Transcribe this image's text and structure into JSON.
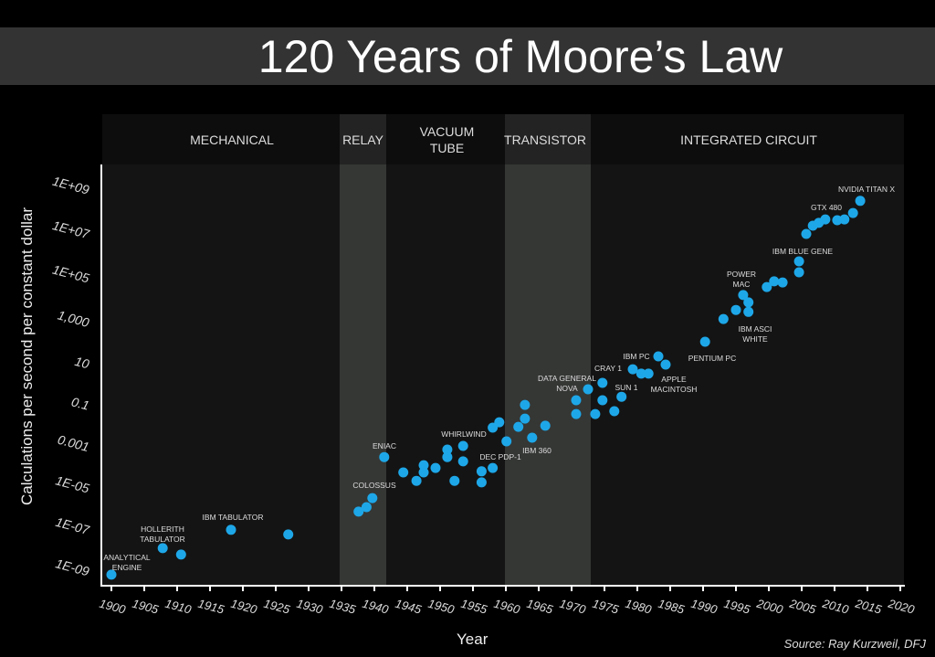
{
  "title": "120 Years of Moore’s Law",
  "source": "Source: Ray Kurzweil, DFJ",
  "chart_data": {
    "type": "scatter",
    "title": "120 Years of Moore’s Law",
    "xlabel": "Year",
    "ylabel": "Calculations per second per constant dollar",
    "xlim": [
      1898,
      2020
    ],
    "ylim": [
      1e-09,
      1000000000.0
    ],
    "y_scale": "log",
    "grid": false,
    "x_ticks": [
      "1900",
      "1905",
      "1910",
      "1915",
      "1920",
      "1925",
      "1930",
      "1935",
      "1940",
      "1945",
      "1950",
      "1955",
      "1960",
      "1965",
      "1970",
      "1975",
      "1980",
      "1985",
      "1990",
      "1995",
      "2000",
      "2005",
      "2010",
      "2015",
      "2020"
    ],
    "y_ticks": [
      "1E-09",
      "1E-07",
      "1E-05",
      "0.001",
      "0.1",
      "10",
      "1,000",
      "1E+05",
      "1E+07",
      "1E+09"
    ],
    "eras": [
      {
        "label": "MECHANICAL",
        "from": 1898,
        "to": 1935
      },
      {
        "label": "RELAY",
        "from": 1935,
        "to": 1942
      },
      {
        "label": "VACUUM TUBE",
        "from": 1942,
        "to": 1960
      },
      {
        "label": "TRANSISTOR",
        "from": 1960,
        "to": 1973
      },
      {
        "label": "INTEGRATED CIRCUIT",
        "from": 1973,
        "to": 2020
      }
    ],
    "point_color": "#1ea7e8",
    "points": [
      [
        1900,
        4.5e-10
      ],
      [
        1907.8,
        8.5e-09
      ],
      [
        1910.6,
        4.2e-09
      ],
      [
        1918.2,
        6.5e-08
      ],
      [
        1926.9,
        3.9e-08
      ],
      [
        1937.6,
        4.9e-07
      ],
      [
        1938.8,
        8.1e-07
      ],
      [
        1939.7,
        2.2e-06
      ],
      [
        1941.5,
        0.00021
      ],
      [
        1944.4,
        3.8e-05
      ],
      [
        1946.4,
        1.5e-05
      ],
      [
        1947.5,
        3.8e-05
      ],
      [
        1947.5,
        8.5e-05
      ],
      [
        1949.3,
        6.3e-05
      ],
      [
        1951.1,
        0.00021
      ],
      [
        1951.1,
        0.00048
      ],
      [
        1952.2,
        1.5e-05
      ],
      [
        1953.5,
        0.00013
      ],
      [
        1953.5,
        0.00072
      ],
      [
        1956.3,
        4.3e-05
      ],
      [
        1956.3,
        1.26e-05
      ],
      [
        1958,
        6.3e-05
      ],
      [
        1958,
        0.0055
      ],
      [
        1959,
        0.01
      ],
      [
        1960.1,
        0.0012
      ],
      [
        1961.9,
        0.006
      ],
      [
        1962.9,
        0.015
      ],
      [
        1962.9,
        0.069
      ],
      [
        1964,
        0.0018
      ],
      [
        1966,
        0.0068
      ],
      [
        1970.7,
        0.115
      ],
      [
        1970.7,
        0.025
      ],
      [
        1972.5,
        0.39
      ],
      [
        1973.6,
        0.025
      ],
      [
        1974.7,
        0.79
      ],
      [
        1974.7,
        0.115
      ],
      [
        1976.5,
        0.034
      ],
      [
        1977.6,
        0.17
      ],
      [
        1979.3,
        3.6
      ],
      [
        1980.6,
        2.2
      ],
      [
        1981.7,
        2.2
      ],
      [
        1983.2,
        15
      ],
      [
        1984.3,
        6
      ],
      [
        1990.3,
        76
      ],
      [
        1993.1,
        950
      ],
      [
        1995,
        2600
      ],
      [
        1996.1,
        13500
      ],
      [
        1996.9,
        6000
      ],
      [
        1996.9,
        2100
      ],
      [
        1999.7,
        33000
      ],
      [
        2000.8,
        62000
      ],
      [
        2002.1,
        55000
      ],
      [
        2004.6,
        170000
      ],
      [
        2004.6,
        575000
      ],
      [
        2005.7,
        12000000.0
      ],
      [
        2006.7,
        30000000.0
      ],
      [
        2007.6,
        41000000.0
      ],
      [
        2008.6,
        60000000.0
      ],
      [
        2010.4,
        55000000.0
      ],
      [
        2011.5,
        60000000.0
      ],
      [
        2012.8,
        123000000.0
      ],
      [
        2013.9,
        470000000.0
      ]
    ],
    "annotations": [
      "ANALYTICAL\nENGINE",
      "HOLLERITH\nTABULATOR",
      "IBM TABULATOR",
      "COLOSSUS",
      "ENIAC",
      "WHIRLWIND",
      "DEC PDP-1",
      "IBM 360",
      "DATA GENERAL\nNOVA",
      "CRAY 1",
      "SUN 1",
      "IBM PC",
      "APPLE\nMACINTOSH",
      "PENTIUM PC",
      "POWER\nMAC",
      "IBM ASCI\nWHITE",
      "IBM BLUE GENE",
      "GTX 480",
      "NVIDIA TITAN X"
    ]
  }
}
